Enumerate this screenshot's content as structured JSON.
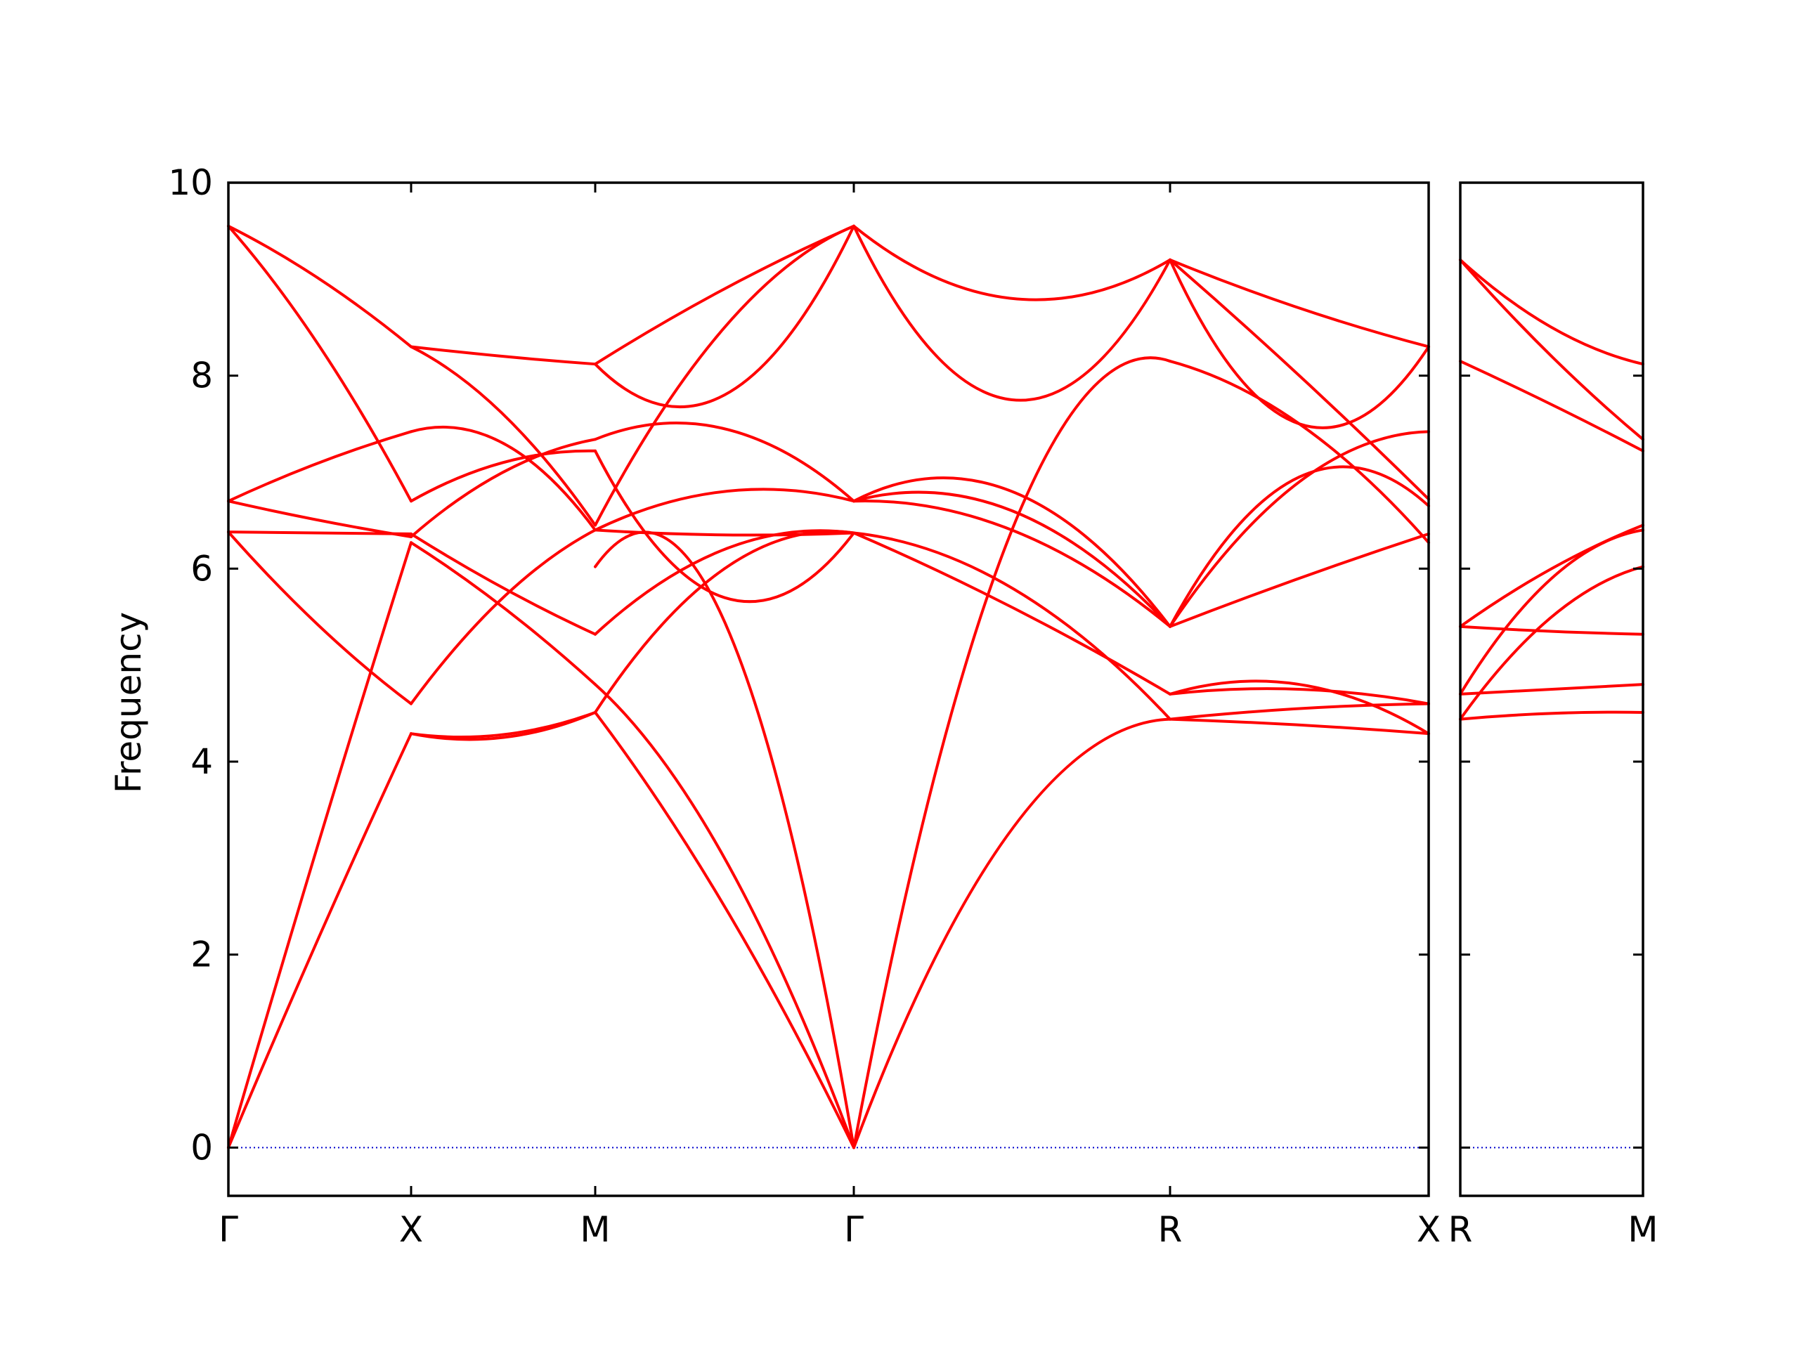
{
  "chart_data": {
    "type": "line",
    "ylabel": "Frequency",
    "ylim": [
      -0.5,
      10
    ],
    "yticks": [
      0,
      2,
      4,
      6,
      8,
      10
    ],
    "grid": false,
    "colors": {
      "bands": "#ff0000",
      "zero_line": "#0000cc",
      "axes": "#000000"
    },
    "panels": [
      {
        "id": "main",
        "x_labels": [
          "Γ",
          "X",
          "M",
          "Γ",
          "R",
          "X"
        ],
        "segments": [
          {
            "from": "Γ",
            "to": "X",
            "bands": [
              [
                0,
                2.2,
                4.29
              ],
              [
                0,
                3.2,
                6.27
              ],
              [
                6.38,
                6.37,
                6.36
              ],
              [
                6.38,
                5.4,
                4.6
              ],
              [
                6.7,
                6.5,
                6.33
              ],
              [
                6.7,
                7.1,
                7.42
              ],
              [
                9.55,
                8.3,
                6.7
              ],
              [
                9.55,
                9.0,
                8.3
              ]
            ]
          },
          {
            "from": "X",
            "to": "M",
            "bands": [
              [
                4.29,
                4.25,
                4.51
              ],
              [
                4.29,
                4.28,
                4.51
              ],
              [
                4.6,
                5.7,
                6.4
              ],
              [
                6.27,
                5.6,
                4.8
              ],
              [
                6.36,
                5.8,
                5.32
              ],
              [
                6.33,
                7.0,
                7.34
              ],
              [
                6.7,
                7.1,
                7.22
              ],
              [
                7.42,
                7.3,
                6.4
              ],
              [
                8.3,
                7.6,
                6.45
              ],
              [
                8.3,
                8.2,
                8.12
              ]
            ]
          },
          {
            "from": "M",
            "to": "Γ",
            "bands": [
              [
                4.51,
                2.5,
                0
              ],
              [
                4.8,
                3.0,
                0
              ],
              [
                6.02,
                5.45,
                0
              ],
              [
                4.51,
                6.0,
                6.37
              ],
              [
                5.32,
                6.2,
                6.37
              ],
              [
                6.4,
                6.8,
                6.7
              ],
              [
                6.4,
                6.35,
                6.37
              ],
              [
                7.22,
                5.7,
                6.37
              ],
              [
                7.34,
                7.45,
                6.7
              ],
              [
                6.45,
                8.5,
                9.55
              ],
              [
                8.12,
                7.8,
                9.55
              ],
              [
                8.12,
                8.9,
                9.55
              ]
            ]
          },
          {
            "from": "Γ",
            "to": "R",
            "bands": [
              [
                0,
                3.3,
                4.44
              ],
              [
                0,
                6.4,
                8.15
              ],
              [
                6.37,
                5.8,
                4.44
              ],
              [
                6.37,
                5.6,
                4.7
              ],
              [
                6.7,
                6.4,
                5.4
              ],
              [
                6.7,
                6.6,
                5.4
              ],
              [
                6.7,
                6.8,
                5.4
              ],
              [
                9.55,
                7.75,
                9.2
              ],
              [
                9.55,
                8.8,
                9.2
              ]
            ]
          },
          {
            "from": "R",
            "to": "X",
            "bands": [
              [
                4.44,
                4.38,
                4.29
              ],
              [
                4.44,
                4.55,
                4.6
              ],
              [
                4.7,
                4.8,
                4.29
              ],
              [
                4.7,
                4.75,
                4.6
              ],
              [
                5.4,
                6.9,
                7.42
              ],
              [
                5.4,
                6.95,
                6.65
              ],
              [
                5.4,
                5.9,
                6.36
              ],
              [
                8.15,
                7.5,
                6.27
              ],
              [
                9.2,
                7.5,
                8.3
              ],
              [
                9.2,
                8.0,
                6.72
              ],
              [
                9.2,
                8.7,
                8.3
              ]
            ]
          }
        ]
      },
      {
        "id": "side",
        "x_labels": [
          "R",
          "M"
        ],
        "segments": [
          {
            "from": "R",
            "to": "M",
            "bands": [
              [
                4.44,
                4.5,
                4.51
              ],
              [
                4.44,
                5.5,
                6.02
              ],
              [
                4.7,
                4.75,
                4.8
              ],
              [
                4.7,
                5.9,
                6.4
              ],
              [
                5.4,
                5.35,
                5.32
              ],
              [
                5.4,
                6.0,
                6.45
              ],
              [
                8.15,
                7.7,
                7.22
              ],
              [
                9.2,
                8.2,
                7.34
              ],
              [
                9.2,
                8.5,
                8.12
              ]
            ]
          }
        ]
      }
    ]
  }
}
